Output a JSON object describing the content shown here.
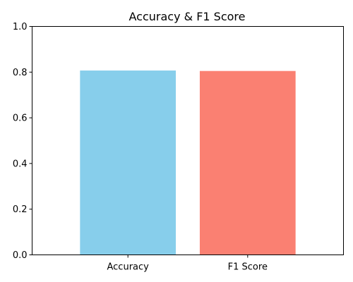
{
  "chart_data": {
    "type": "bar",
    "title": "Accuracy & F1 Score",
    "xlabel": "",
    "ylabel": "",
    "categories": [
      "Accuracy",
      "F1 Score"
    ],
    "values": [
      0.807,
      0.805
    ],
    "colors": [
      "#87ceeb",
      "#fa8072"
    ],
    "ylim": [
      0,
      1.0
    ],
    "yticks": [
      0.0,
      0.2,
      0.4,
      0.6,
      0.8,
      1.0
    ],
    "ytick_labels": [
      "0.0",
      "0.2",
      "0.4",
      "0.6",
      "0.8",
      "1.0"
    ],
    "grid": false,
    "legend": "none"
  }
}
